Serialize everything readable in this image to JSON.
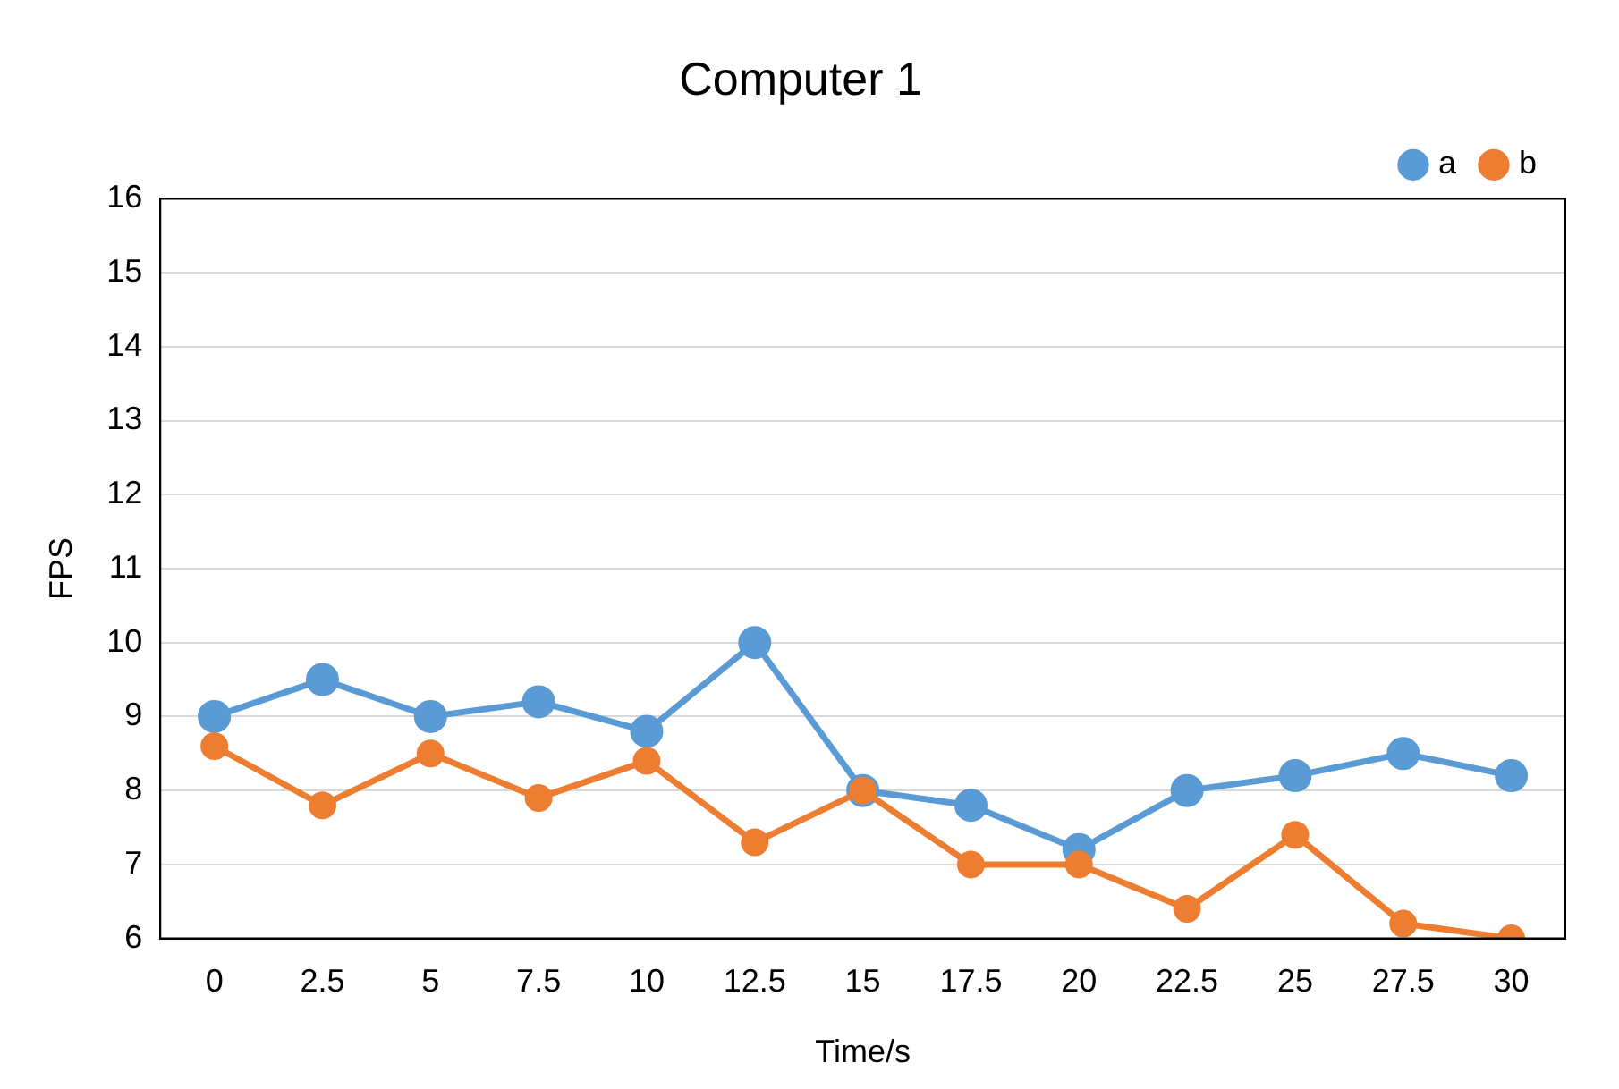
{
  "chart_data": {
    "type": "line",
    "title": "Computer 1",
    "xlabel": "Time/s",
    "ylabel": "FPS",
    "categories": [
      "0",
      "2.5",
      "5",
      "7.5",
      "10",
      "12.5",
      "15",
      "17.5",
      "20",
      "22.5",
      "25",
      "27.5",
      "30"
    ],
    "series": [
      {
        "name": "a",
        "color": "#5b9bd5",
        "values": [
          9,
          9.5,
          9,
          9.2,
          8.8,
          10,
          8,
          7.8,
          7.2,
          8,
          8.2,
          8.5,
          8.2
        ]
      },
      {
        "name": "b",
        "color": "#ed7d31",
        "values": [
          8.6,
          7.8,
          8.5,
          7.9,
          8.4,
          7.3,
          8,
          7,
          7,
          6.4,
          7.4,
          6.2,
          6
        ]
      }
    ],
    "ylim": [
      6,
      16
    ],
    "yticks": [
      6,
      7,
      8,
      9,
      10,
      11,
      12,
      13,
      14,
      15,
      16
    ],
    "grid": "y",
    "legend": "top right",
    "marker": "circle",
    "line_style": "solid"
  }
}
